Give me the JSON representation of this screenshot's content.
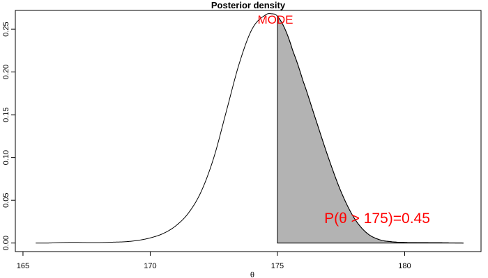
{
  "chart_data": {
    "type": "area",
    "title": "Posterior density",
    "xlabel": "θ",
    "ylabel": "",
    "xlim": [
      164.7,
      183.0
    ],
    "ylim": [
      -0.01,
      0.272
    ],
    "x_ticks": [
      165,
      170,
      175,
      180
    ],
    "x_tick_labels": [
      "165",
      "170",
      "175",
      "180"
    ],
    "y_ticks": [
      0.0,
      0.05,
      0.1,
      0.15,
      0.2,
      0.25
    ],
    "y_tick_labels": [
      "0.00",
      "0.05",
      "0.10",
      "0.15",
      "0.20",
      "0.25"
    ],
    "grid": false,
    "legend": false,
    "series": [
      {
        "type": "line",
        "x": [
          165.5,
          166.0,
          166.5,
          167.0,
          167.5,
          168.0,
          168.5,
          169.0,
          169.5,
          170.0,
          170.5,
          171.0,
          171.5,
          172.0,
          172.5,
          173.0,
          173.5,
          174.0,
          174.5,
          174.8,
          175.0,
          175.3,
          175.6,
          176.0,
          176.5,
          177.0,
          177.5,
          178.0,
          178.5,
          179.0,
          179.5,
          180.0,
          180.5,
          181.0,
          181.5,
          182.0,
          182.3
        ],
        "y": [
          0.0,
          0.0,
          0.0005,
          0.0008,
          0.0005,
          0.0005,
          0.001,
          0.0015,
          0.003,
          0.006,
          0.011,
          0.02,
          0.035,
          0.06,
          0.1,
          0.155,
          0.21,
          0.25,
          0.266,
          0.268,
          0.265,
          0.25,
          0.225,
          0.19,
          0.145,
          0.1,
          0.06,
          0.03,
          0.012,
          0.004,
          0.0015,
          0.0007,
          0.0005,
          0.0004,
          0.0003,
          0.0001,
          0.0
        ]
      }
    ],
    "shaded_region": {
      "from": 175.0,
      "to": 182.3,
      "color": "#b3b3b3"
    },
    "annotations": [
      {
        "text": "MODE",
        "x": 174.8,
        "y": 0.262,
        "color": "#ff0000"
      },
      {
        "text": "P(θ > 175)=0.45",
        "x": 177.9,
        "y": 0.03,
        "color": "#ff0000"
      }
    ]
  }
}
